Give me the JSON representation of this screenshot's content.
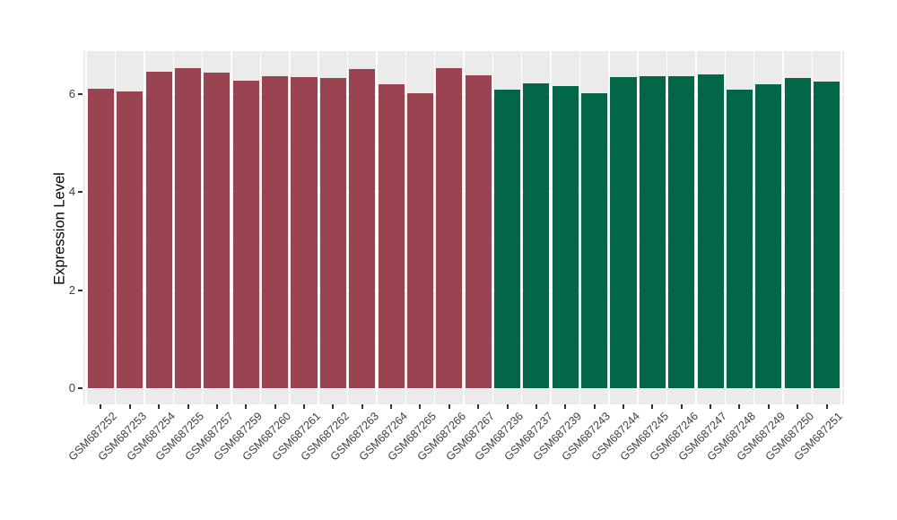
{
  "figure": {
    "background": "#FFFFFF",
    "panel_background": "#EBEBEB",
    "grid_major_color": "#FFFFFF",
    "grid_minor_color": "#FFFFFF",
    "tick_color": "#333333",
    "axis_text_color": "#404040",
    "axis_title_color": "#000000"
  },
  "chart_data": {
    "type": "bar",
    "title": "",
    "xlabel": "",
    "ylabel": "Expression Level",
    "ylim": [
      -0.33,
      6.87
    ],
    "yticks": [
      0,
      2,
      4,
      6
    ],
    "yticks_minor": [
      1,
      3,
      5
    ],
    "grid": "white major and minor gridlines on grey panel",
    "legend_position": "none",
    "categories": [
      "GSM687252",
      "GSM687253",
      "GSM687254",
      "GSM687255",
      "GSM687257",
      "GSM687259",
      "GSM687260",
      "GSM687261",
      "GSM687262",
      "GSM687263",
      "GSM687264",
      "GSM687265",
      "GSM687266",
      "GSM687267",
      "GSM687236",
      "GSM687237",
      "GSM687239",
      "GSM687243",
      "GSM687244",
      "GSM687245",
      "GSM687246",
      "GSM687247",
      "GSM687248",
      "GSM687249",
      "GSM687250",
      "GSM687251"
    ],
    "values": [
      6.1,
      6.06,
      6.45,
      6.52,
      6.43,
      6.27,
      6.36,
      6.34,
      6.33,
      6.5,
      6.2,
      6.01,
      6.52,
      6.38,
      6.09,
      6.21,
      6.17,
      6.01,
      6.34,
      6.37,
      6.37,
      6.4,
      6.08,
      6.19,
      6.32,
      6.25
    ],
    "groups": [
      "red",
      "red",
      "red",
      "red",
      "red",
      "red",
      "red",
      "red",
      "red",
      "red",
      "red",
      "red",
      "red",
      "red",
      "green",
      "green",
      "green",
      "green",
      "green",
      "green",
      "green",
      "green",
      "green",
      "green",
      "green",
      "green"
    ],
    "group_colors": {
      "red": "#9A4351",
      "green": "#026648"
    }
  }
}
